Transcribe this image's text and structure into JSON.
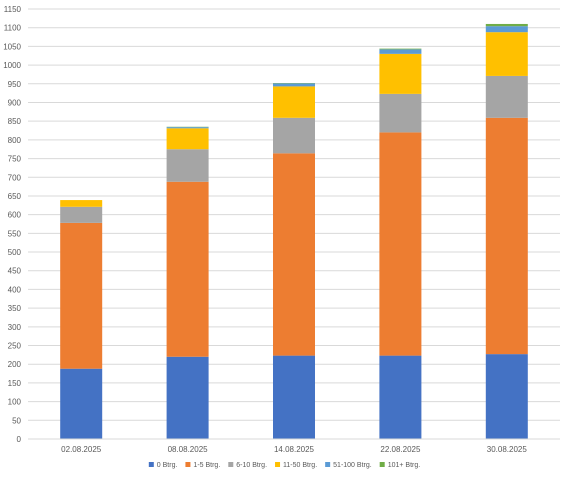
{
  "chart_data": {
    "type": "bar",
    "stacked": true,
    "title": "",
    "xlabel": "",
    "ylabel": "",
    "ylim": [
      0,
      1150
    ],
    "y_tick_step": 50,
    "grid": true,
    "legend_position": "bottom",
    "categories": [
      "02.08.2025",
      "08.08.2025",
      "14.08.2025",
      "22.08.2025",
      "30.08.2025"
    ],
    "series": [
      {
        "name": "0 Btrg.",
        "color": "#4472c4",
        "values": [
          188,
          220,
          223,
          223,
          227
        ]
      },
      {
        "name": "1-5 Btrg.",
        "color": "#ed7d31",
        "values": [
          390,
          468,
          541,
          597,
          632
        ]
      },
      {
        "name": "6-10 Btrg.",
        "color": "#a5a5a5",
        "values": [
          43,
          87,
          95,
          103,
          112
        ]
      },
      {
        "name": "11-50 Btrg.",
        "color": "#ffc000",
        "values": [
          18,
          56,
          84,
          107,
          117
        ]
      },
      {
        "name": "51-100 Btrg.",
        "color": "#5b9bd5",
        "values": [
          0,
          3,
          8,
          12,
          16
        ]
      },
      {
        "name": "101+ Btrg.",
        "color": "#70ad47",
        "values": [
          0,
          1,
          1,
          2,
          6
        ]
      }
    ]
  }
}
